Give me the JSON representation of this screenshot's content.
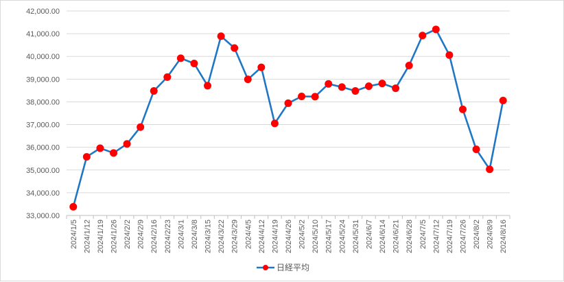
{
  "chart_data": {
    "type": "line",
    "title": "",
    "xlabel": "",
    "ylabel": "",
    "ylim": [
      33000,
      42000
    ],
    "ytick_step": 1000,
    "grid": "horizontal",
    "legend_position": "bottom",
    "colors": {
      "line": "#1f77c4",
      "marker": "#ff0000",
      "grid": "#d9d9d9",
      "axis": "#bfbfbf",
      "text": "#595959"
    },
    "categories": [
      "2024/1/5",
      "2024/1/12",
      "2024/1/19",
      "2024/1/26",
      "2024/2/2",
      "2024/2/9",
      "2024/2/16",
      "2024/2/23",
      "2024/3/1",
      "2024/3/8",
      "2024/3/15",
      "2024/3/22",
      "2024/3/29",
      "2024/4/5",
      "2024/4/12",
      "2024/4/19",
      "2024/4/26",
      "2024/5/2",
      "2024/5/10",
      "2024/5/17",
      "2024/5/24",
      "2024/5/31",
      "2024/6/7",
      "2024/6/14",
      "2024/6/21",
      "2024/6/28",
      "2024/7/5",
      "2024/7/12",
      "2024/7/19",
      "2024/7/26",
      "2024/8/2",
      "2024/8/9",
      "2024/8/16"
    ],
    "series": [
      {
        "name": "日経平均",
        "values": [
          33380,
          35580,
          35960,
          35750,
          36150,
          36890,
          38480,
          39090,
          39920,
          39690,
          38710,
          40890,
          40370,
          38990,
          39520,
          37050,
          37940,
          38240,
          38230,
          38790,
          38650,
          38480,
          38690,
          38810,
          38600,
          39600,
          40920,
          41190,
          40060,
          37670,
          35910,
          35030,
          38060
        ]
      }
    ]
  }
}
